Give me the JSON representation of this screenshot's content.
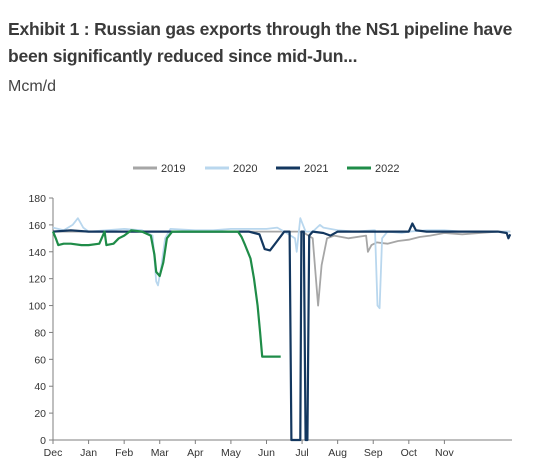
{
  "chart_data": {
    "type": "line",
    "title": "Exhibit 1 : Russian gas exports through the NS1 pipeline have been significantly reduced since mid-Jun...",
    "subtitle": "Mcm/d",
    "xlabel": "",
    "ylabel": "",
    "ylim": [
      0,
      180
    ],
    "yticks": [
      0,
      20,
      40,
      60,
      80,
      100,
      120,
      140,
      160,
      180
    ],
    "xlim": [
      0,
      12.9
    ],
    "xticks": [
      {
        "label": "Dec",
        "pos": 0
      },
      {
        "label": "Jan",
        "pos": 1
      },
      {
        "label": "Feb",
        "pos": 2
      },
      {
        "label": "Mar",
        "pos": 3
      },
      {
        "label": "Apr",
        "pos": 4
      },
      {
        "label": "May",
        "pos": 5
      },
      {
        "label": "Jun",
        "pos": 6
      },
      {
        "label": "Jul",
        "pos": 7
      },
      {
        "label": "Aug",
        "pos": 8
      },
      {
        "label": "Sep",
        "pos": 9
      },
      {
        "label": "Oct",
        "pos": 10
      },
      {
        "label": "Nov",
        "pos": 11
      }
    ],
    "grid": false,
    "legend": "top",
    "series": [
      {
        "name": "2019",
        "color": "#a6a6a6",
        "points": [
          [
            0,
            155
          ],
          [
            0.5,
            155
          ],
          [
            1,
            155
          ],
          [
            2,
            155
          ],
          [
            3,
            155
          ],
          [
            4,
            155
          ],
          [
            5,
            155
          ],
          [
            5.9,
            155
          ],
          [
            6.5,
            155
          ],
          [
            7,
            155
          ],
          [
            7.3,
            150
          ],
          [
            7.45,
            100
          ],
          [
            7.55,
            130
          ],
          [
            7.7,
            150
          ],
          [
            7.9,
            152
          ],
          [
            8.3,
            150
          ],
          [
            8.8,
            152
          ],
          [
            8.85,
            140
          ],
          [
            8.95,
            145
          ],
          [
            9.1,
            147
          ],
          [
            9.4,
            146
          ],
          [
            9.7,
            148
          ],
          [
            10,
            149
          ],
          [
            10.3,
            151
          ],
          [
            10.6,
            152
          ],
          [
            11,
            154
          ],
          [
            11.5,
            153
          ],
          [
            12,
            154
          ],
          [
            12.5,
            155
          ],
          [
            12.85,
            155
          ]
        ]
      },
      {
        "name": "2020",
        "color": "#b9d7ee",
        "points": [
          [
            0,
            158
          ],
          [
            0.3,
            156
          ],
          [
            0.55,
            160
          ],
          [
            0.7,
            165
          ],
          [
            0.85,
            158
          ],
          [
            1,
            155
          ],
          [
            1.5,
            156
          ],
          [
            2,
            157
          ],
          [
            2.5,
            156
          ],
          [
            2.8,
            152
          ],
          [
            2.9,
            118
          ],
          [
            2.95,
            115
          ],
          [
            3.05,
            130
          ],
          [
            3.15,
            150
          ],
          [
            3.3,
            157
          ],
          [
            4,
            156
          ],
          [
            4.5,
            156
          ],
          [
            5,
            157
          ],
          [
            5.5,
            157
          ],
          [
            6,
            157
          ],
          [
            6.3,
            158
          ],
          [
            6.5,
            155
          ],
          [
            6.8,
            150
          ],
          [
            6.85,
            140
          ],
          [
            6.95,
            165
          ],
          [
            7.1,
            155
          ],
          [
            7.3,
            155
          ],
          [
            7.5,
            160
          ],
          [
            7.6,
            158
          ],
          [
            8,
            156
          ],
          [
            8.5,
            155
          ],
          [
            9,
            156
          ],
          [
            9.05,
            156
          ],
          [
            9.12,
            100
          ],
          [
            9.18,
            98
          ],
          [
            9.25,
            150
          ],
          [
            9.4,
            155
          ],
          [
            9.8,
            154
          ],
          [
            10,
            155
          ],
          [
            10.5,
            156
          ],
          [
            11,
            156
          ],
          [
            11.5,
            155
          ],
          [
            12,
            155
          ],
          [
            12.5,
            155
          ],
          [
            12.85,
            155
          ]
        ]
      },
      {
        "name": "2021",
        "color": "#13375f",
        "points": [
          [
            0,
            155
          ],
          [
            0.5,
            156
          ],
          [
            1,
            155
          ],
          [
            1.5,
            155
          ],
          [
            2,
            155
          ],
          [
            2.5,
            155
          ],
          [
            3,
            155
          ],
          [
            3.5,
            155
          ],
          [
            4,
            155
          ],
          [
            4.5,
            155
          ],
          [
            5,
            155
          ],
          [
            5.5,
            155
          ],
          [
            5.8,
            153
          ],
          [
            5.95,
            142
          ],
          [
            6.1,
            141
          ],
          [
            6.3,
            148
          ],
          [
            6.5,
            155
          ],
          [
            6.65,
            155
          ],
          [
            6.7,
            0
          ],
          [
            6.95,
            0
          ],
          [
            6.98,
            155
          ],
          [
            7.05,
            155
          ],
          [
            7.1,
            0
          ],
          [
            7.15,
            0
          ],
          [
            7.2,
            152
          ],
          [
            7.3,
            155
          ],
          [
            7.6,
            154
          ],
          [
            7.8,
            152
          ],
          [
            8,
            155
          ],
          [
            8.5,
            155
          ],
          [
            9,
            155
          ],
          [
            9.5,
            155
          ],
          [
            10,
            155
          ],
          [
            10.1,
            161
          ],
          [
            10.2,
            156
          ],
          [
            10.5,
            155
          ],
          [
            11,
            155
          ],
          [
            11.5,
            155
          ],
          [
            12,
            155
          ],
          [
            12.5,
            155
          ],
          [
            12.75,
            154
          ],
          [
            12.8,
            150
          ],
          [
            12.85,
            153
          ]
        ]
      },
      {
        "name": "2022",
        "color": "#1f8c48",
        "points": [
          [
            0,
            155
          ],
          [
            0.08,
            150
          ],
          [
            0.15,
            145
          ],
          [
            0.3,
            146
          ],
          [
            0.5,
            146
          ],
          [
            0.8,
            145
          ],
          [
            1,
            145
          ],
          [
            1.3,
            146
          ],
          [
            1.45,
            155
          ],
          [
            1.5,
            145
          ],
          [
            1.7,
            146
          ],
          [
            1.85,
            150
          ],
          [
            2,
            152
          ],
          [
            2.2,
            156
          ],
          [
            2.5,
            155
          ],
          [
            2.75,
            152
          ],
          [
            2.85,
            138
          ],
          [
            2.9,
            125
          ],
          [
            3.0,
            122
          ],
          [
            3.1,
            132
          ],
          [
            3.2,
            150
          ],
          [
            3.35,
            155
          ],
          [
            3.6,
            155
          ],
          [
            4,
            155
          ],
          [
            4.5,
            155
          ],
          [
            5,
            155
          ],
          [
            5.2,
            155
          ],
          [
            5.3,
            151
          ],
          [
            5.4,
            145
          ],
          [
            5.55,
            135
          ],
          [
            5.65,
            120
          ],
          [
            5.75,
            100
          ],
          [
            5.82,
            80
          ],
          [
            5.88,
            62
          ],
          [
            6,
            62
          ],
          [
            6.2,
            62
          ],
          [
            6.4,
            62
          ]
        ]
      }
    ]
  }
}
